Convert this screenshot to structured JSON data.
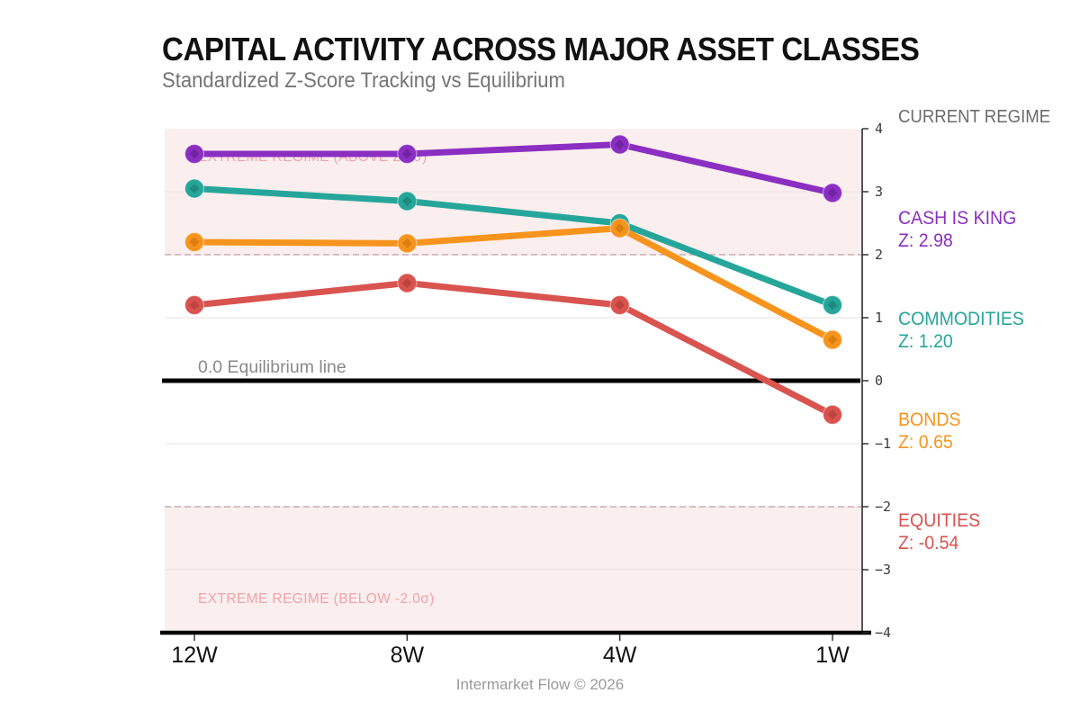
{
  "page": {
    "title": "CAPITAL ACTIVITY ACROSS MAJOR ASSET CLASSES",
    "subtitle": "Standardized Z-Score Tracking vs Equilibrium",
    "footer": "Intermarket Flow © 2026"
  },
  "legend": {
    "header": "CURRENT REGIME",
    "items": [
      {
        "name": "CASH IS KING",
        "z_label": "Z: 2.98",
        "color": "#8a2fc2"
      },
      {
        "name": "COMMODITIES",
        "z_label": "Z: 1.20",
        "color": "#26a69a"
      },
      {
        "name": "BONDS",
        "z_label": "Z: 0.65",
        "color": "#f7941d"
      },
      {
        "name": "EQUITIES",
        "z_label": "Z: -0.54",
        "color": "#d9534f"
      }
    ]
  },
  "chart_data": {
    "type": "line",
    "title": "CAPITAL ACTIVITY ACROSS MAJOR ASSET CLASSES",
    "subtitle": "Standardized Z-Score Tracking vs Equilibrium",
    "categories": [
      "12W",
      "8W",
      "4W",
      "1W"
    ],
    "series": [
      {
        "name": "CASH IS KING",
        "color": "#8a2fc2",
        "marker_core": "#6f22a0",
        "values": [
          3.6,
          3.6,
          3.75,
          2.98
        ]
      },
      {
        "name": "COMMODITIES",
        "color": "#26a69a",
        "marker_core": "#1d877d",
        "values": [
          3.05,
          2.85,
          2.5,
          1.2
        ]
      },
      {
        "name": "BONDS",
        "color": "#f7941d",
        "marker_core": "#d67c0f",
        "values": [
          2.2,
          2.18,
          2.42,
          0.65
        ]
      },
      {
        "name": "EQUITIES",
        "color": "#d9534f",
        "marker_core": "#ba423f",
        "values": [
          1.2,
          1.55,
          1.2,
          -0.54
        ]
      }
    ],
    "ylim": [
      -4,
      4
    ],
    "yticks": [
      4,
      3,
      2,
      1,
      0,
      -1,
      -2,
      -3,
      -4
    ],
    "grid": true,
    "legend_position": "right",
    "equilibrium": {
      "value": 0,
      "label": "0.0 Equilibrium line"
    },
    "bands": [
      {
        "label": "EXTREME REGIME (ABOVE 2.0σ)",
        "from": 2,
        "to": 4
      },
      {
        "label": "EXTREME REGIME (BELOW -2.0σ)",
        "from": -4,
        "to": -2
      }
    ],
    "colors": {
      "band_fill": "#fbeeee",
      "band_text": "#f0a3a9",
      "threshold_dash": "#c9abb0",
      "gridline": "#ece2e2",
      "equilibrium_line": "#000000",
      "equilibrium_text": "#8a8a8a",
      "axis": "#2a2a2a",
      "tick_text": "#3a3a3a",
      "xtick_text": "#111111"
    }
  }
}
